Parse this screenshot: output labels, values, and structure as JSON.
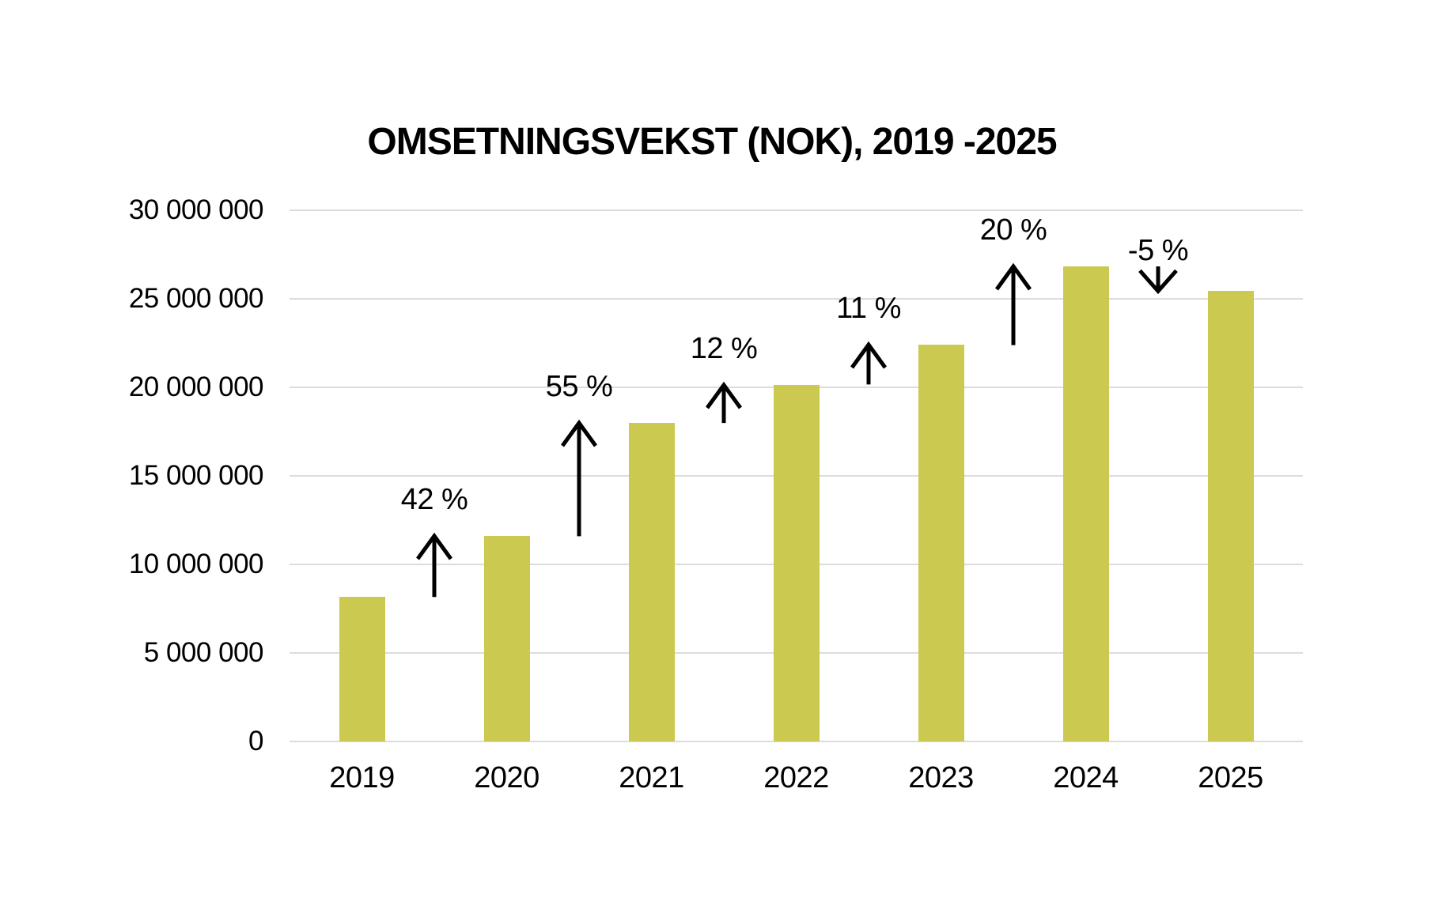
{
  "chart_data": {
    "type": "bar",
    "title": "OMSETNINGSVEKST (NOK), 2019 -2025",
    "categories": [
      "2019",
      "2020",
      "2021",
      "2022",
      "2023",
      "2024",
      "2025"
    ],
    "values": [
      8150000,
      11600000,
      18000000,
      20150000,
      22400000,
      26850000,
      25450000
    ],
    "growth_annotations": [
      {
        "after": "2019",
        "label": "42 %",
        "value": 42,
        "direction": "up"
      },
      {
        "after": "2020",
        "label": "55 %",
        "value": 55,
        "direction": "up"
      },
      {
        "after": "2021",
        "label": "12 %",
        "value": 12,
        "direction": "up"
      },
      {
        "after": "2022",
        "label": "11 %",
        "value": 11,
        "direction": "up"
      },
      {
        "after": "2023",
        "label": "20 %",
        "value": 20,
        "direction": "up"
      },
      {
        "after": "2024",
        "label": "-5 %",
        "value": -5,
        "direction": "down"
      }
    ],
    "y_axis": {
      "tick_labels": [
        "30 000 000",
        "25 000 000",
        "20 000 000",
        "15 000 000",
        "10 000 000",
        "5 000 000",
        "0"
      ],
      "tick_values": [
        30000000,
        25000000,
        20000000,
        15000000,
        10000000,
        5000000,
        0
      ],
      "range": [
        0,
        30000000
      ]
    },
    "xlabel": "",
    "ylabel": "",
    "legend": "none",
    "grid": "horizontal",
    "colors": {
      "bar": "#cbc94f",
      "gridline": "#dcdcdc",
      "text": "#000000",
      "arrow": "#000000",
      "background": "#ffffff"
    }
  }
}
